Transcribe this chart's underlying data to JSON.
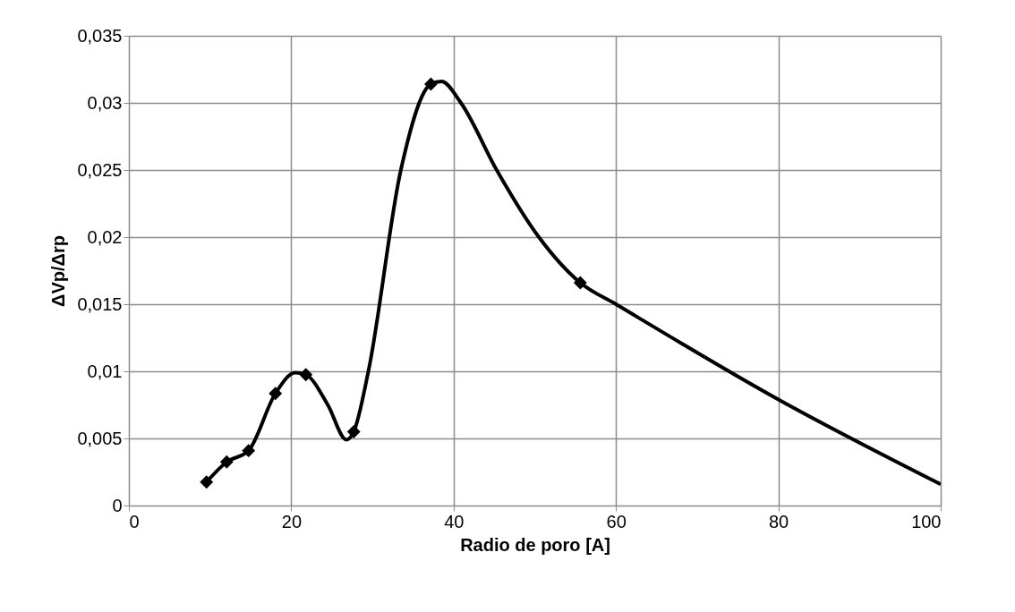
{
  "chart_data": {
    "type": "scatter",
    "xlabel": "Radio de poro [A]",
    "ylabel": "ΔVp/Δrp",
    "xlim": [
      0,
      100
    ],
    "xticks": [
      0,
      20,
      40,
      60,
      80,
      100
    ],
    "ylim": [
      0,
      0.035
    ],
    "yticks": [
      0,
      {
        "value": 0.005,
        "label": "0,005"
      },
      {
        "value": 0.01,
        "label": "0,01"
      },
      {
        "value": 0.015,
        "label": "0,015"
      },
      {
        "value": 0.02,
        "label": "0,02"
      },
      {
        "value": 0.025,
        "label": "0,025"
      },
      {
        "value": 0.03,
        "label": "0,03"
      },
      {
        "value": 0.035,
        "label": "0,035"
      }
    ],
    "grid": true,
    "series": [
      {
        "type": "line",
        "marker": "none",
        "color": "#000000",
        "x": [
          9.56,
          12.05,
          14.74,
          18.05,
          20.5,
          21.8,
          24.5,
          26.8,
          27.7,
          29.5,
          33.5,
          37.2,
          38.5,
          40.9,
          45.3,
          50.5,
          55.6,
          60,
          80,
          100
        ],
        "values": [
          0.00175,
          0.00325,
          0.00409,
          0.00835,
          0.0099,
          0.00975,
          0.0075,
          0.0049,
          0.0055,
          0.01,
          0.025,
          0.0314,
          0.0316,
          0.03,
          0.025,
          0.02,
          0.0166,
          0.015,
          0.0079,
          0.00158
        ]
      },
      {
        "marker": "diamond",
        "color": "#000000",
        "x": [
          9.56,
          12.05,
          14.74,
          18.05,
          21.8,
          27.7,
          37.2,
          55.6
        ],
        "values": [
          0.00175,
          0.00325,
          0.00409,
          0.00835,
          0.00975,
          0.0055,
          0.0314,
          0.0166
        ]
      }
    ]
  }
}
